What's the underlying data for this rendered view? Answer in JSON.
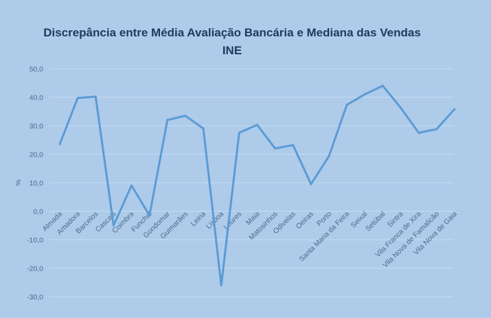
{
  "chart_data": {
    "type": "line",
    "title": "Discrepância entre Média Avaliação Bancária e Mediana das Vendas",
    "subtitle": "INE",
    "xlabel": "",
    "ylabel": "%",
    "ylim": [
      -30,
      50
    ],
    "yticks": [
      "50,0",
      "40,0",
      "30,0",
      "20,0",
      "10,0",
      "0,0",
      "-10,0",
      "-20,0",
      "-30,0"
    ],
    "grid": true,
    "line_color": "#5b9bd5",
    "categories": [
      "Almada",
      "Amadora",
      "Barcelos",
      "Cascais",
      "Coimbra",
      "Funchal",
      "Gondomar",
      "Guimarães",
      "Leiria",
      "Lisboa",
      "Loures",
      "Maia",
      "Matosinhos",
      "Odivelas",
      "Oeiras",
      "Porto",
      "Santa Maria da Feira",
      "Seixal",
      "Setúbal",
      "Sintra",
      "Vila Franca de Xira",
      "Vila Nova de Famalicão",
      "Vila Nova de Gaia"
    ],
    "values": [
      23.5,
      39.7,
      40.2,
      -5.0,
      9.0,
      -1.5,
      32.0,
      33.5,
      29.0,
      -26.0,
      27.5,
      30.3,
      22.0,
      23.2,
      9.5,
      19.3,
      37.3,
      41.0,
      44.0,
      36.3,
      27.5,
      28.8,
      35.8
    ]
  }
}
